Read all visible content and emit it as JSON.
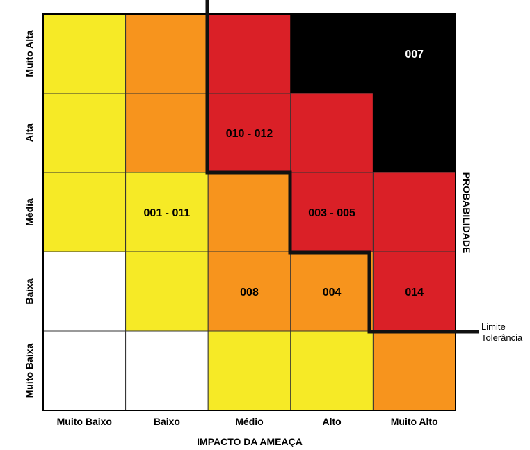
{
  "colors": {
    "white": "#ffffff",
    "yellow": "#f6ea26",
    "orange": "#f7941d",
    "red": "#da2027",
    "black": "#000000"
  },
  "rows": [
    {
      "label": "Muito Alta",
      "colors": [
        "yellow",
        "orange",
        "red",
        "black",
        "black"
      ]
    },
    {
      "label": "Alta",
      "colors": [
        "yellow",
        "orange",
        "red",
        "red",
        "black"
      ]
    },
    {
      "label": "Média",
      "colors": [
        "yellow",
        "yellow",
        "orange",
        "red",
        "red"
      ]
    },
    {
      "label": "Baixa",
      "colors": [
        "white",
        "yellow",
        "orange",
        "orange",
        "red"
      ]
    },
    {
      "label": "Muito Baixa",
      "colors": [
        "white",
        "white",
        "yellow",
        "yellow",
        "orange"
      ]
    }
  ],
  "columns": [
    "Muito Baixo",
    "Baixo",
    "Médio",
    "Alto",
    "Muito Alto"
  ],
  "cell_labels": [
    {
      "row": 0,
      "col": 4,
      "text": "007",
      "text_color": "#ffffff"
    },
    {
      "row": 1,
      "col": 2,
      "text": "010 - 012",
      "text_color": "#000000"
    },
    {
      "row": 2,
      "col": 1,
      "text": "001 - 011",
      "text_color": "#000000"
    },
    {
      "row": 2,
      "col": 3,
      "text": "003 - 005",
      "text_color": "#000000"
    },
    {
      "row": 3,
      "col": 2,
      "text": "008",
      "text_color": "#000000"
    },
    {
      "row": 3,
      "col": 3,
      "text": "004",
      "text_color": "#000000"
    },
    {
      "row": 3,
      "col": 4,
      "text": "014",
      "text_color": "#000000"
    }
  ],
  "x_axis_title": "IMPACTO DA AMEAÇA",
  "y_axis_title": "PROBABILIDADE",
  "tolerance_label": {
    "line1": "Limite",
    "line2": "Tolerância"
  }
}
